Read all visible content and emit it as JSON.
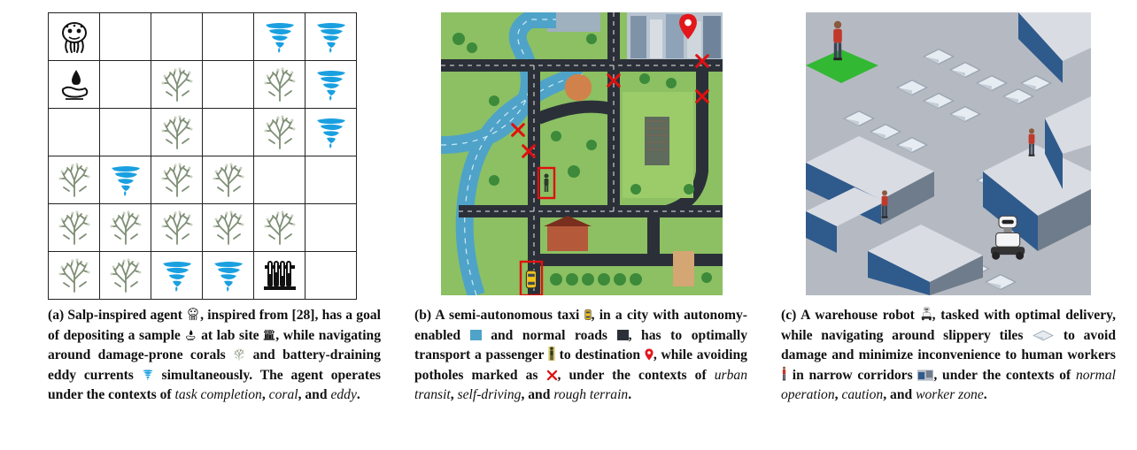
{
  "figure": {
    "panels": [
      {
        "id": "a",
        "grid": {
          "rows": [
            [
              "agent",
              "",
              "",
              "",
              "eddy",
              "eddy"
            ],
            [
              "sample",
              "",
              "coral",
              "",
              "coral",
              "eddy"
            ],
            [
              "",
              "",
              "coral",
              "",
              "coral",
              "eddy"
            ],
            [
              "coral",
              "eddy",
              "coral",
              "coral",
              "",
              ""
            ],
            [
              "coral",
              "coral",
              "coral",
              "coral",
              "coral",
              ""
            ],
            [
              "coral",
              "coral",
              "eddy",
              "eddy",
              "lab",
              ""
            ]
          ],
          "icons": {
            "agent": "salp-agent-icon",
            "sample": "sample-drop-icon",
            "coral": "coral-icon",
            "eddy": "eddy-current-icon",
            "lab": "lab-site-icon"
          },
          "colors": {
            "eddy": "#1aa0e0",
            "coral": "#8a9a80"
          }
        },
        "caption": {
          "label": "(a) Salp-inspired agent",
          "t1": ", inspired from [28], has a goal of depositing a sample",
          "t2": "at lab site",
          "t3": ", while navigating around damage-prone corals",
          "t4": "and battery-draining eddy currents",
          "t5": "simultaneously. The agent operates under the contexts of",
          "ctx1": "task completion",
          "sep1": ",",
          "ctx2": "coral",
          "sep2": ", and",
          "ctx3": "eddy",
          "end": "."
        }
      },
      {
        "id": "b",
        "caption": {
          "label": "(b) A semi-autonomous taxi",
          "t1": ", in a city with autonomy-enabled",
          "t2": "and normal roads",
          "t3": ", has to optimally transport a passenger",
          "t4": "to destination",
          "t5": ", while avoiding potholes marked as",
          "t6": ", under the contexts of",
          "ctx1": "urban transit",
          "sep1": ",",
          "ctx2": "self-driving",
          "sep2": ", and",
          "ctx3": "rough terrain",
          "end": "."
        },
        "colors": {
          "autonomy_road": "#4fa3c8",
          "normal_road": "#2b3038",
          "pothole": "#e01010",
          "grass": "#8cc063"
        }
      },
      {
        "id": "c",
        "caption": {
          "label": "(c) A warehouse robot",
          "t1": ", tasked with optimal delivery, while navigating around slippery tiles",
          "t2": "to avoid damage and minimize inconvenience to human workers",
          "t3": "in narrow corridors",
          "t4": ", under the contexts of",
          "ctx1": "normal operation",
          "sep1": ",",
          "ctx2": "caution",
          "sep2": ", and",
          "ctx3": "worker zone",
          "end": "."
        },
        "colors": {
          "floor": "#b5bac2",
          "goal_tile": "#33b833",
          "shelf": "#2f5a8c"
        }
      }
    ]
  }
}
